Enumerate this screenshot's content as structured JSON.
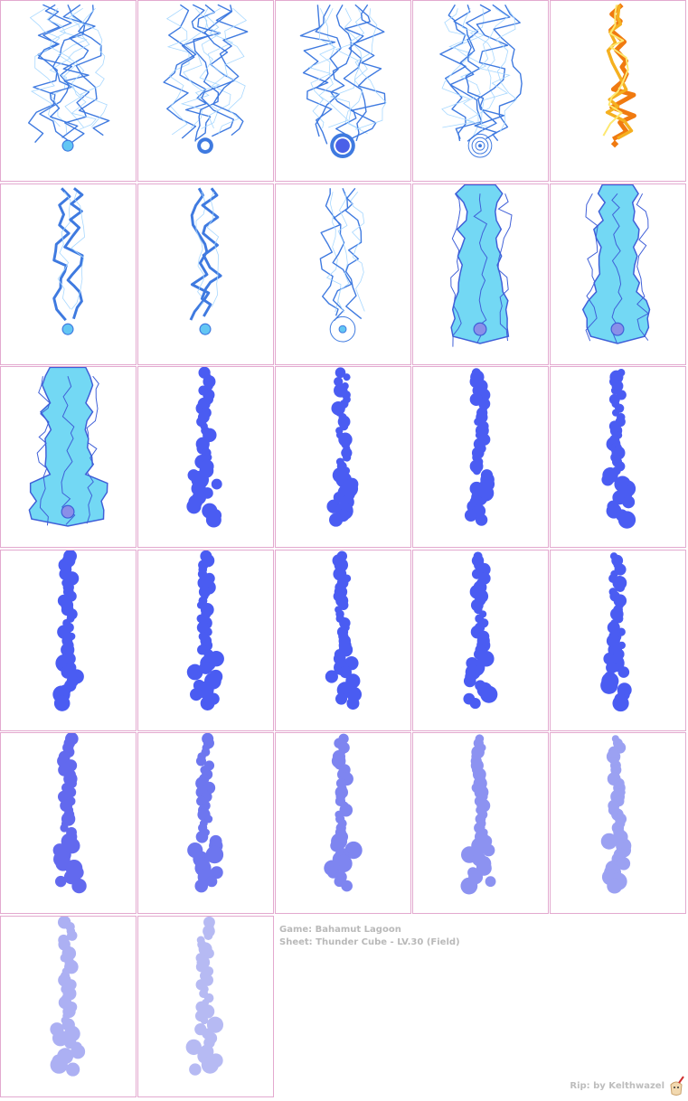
{
  "sheet": {
    "caption_game": "Game: Bahamut Lagoon",
    "caption_sheet": "Sheet: Thunder Cube - LV.30 (Field)",
    "credit": "Rip: by Kelthwazel"
  },
  "frames": [
    {
      "row": 0,
      "col": 0,
      "kind": "bolt",
      "color": "#3f7ae0",
      "orb": "small"
    },
    {
      "row": 0,
      "col": 1,
      "kind": "bolt",
      "color": "#3f7ae0",
      "orb": "ring-small"
    },
    {
      "row": 0,
      "col": 2,
      "kind": "bolt",
      "color": "#3f7ae0",
      "orb": "ring-large"
    },
    {
      "row": 0,
      "col": 3,
      "kind": "bolt",
      "color": "#3f7ae0",
      "orb": "target"
    },
    {
      "row": 0,
      "col": 4,
      "kind": "fire",
      "color": "#f07a10",
      "orb": "diamond"
    },
    {
      "row": 1,
      "col": 0,
      "kind": "bolt-thick",
      "color": "#3f7ae0",
      "orb": "small"
    },
    {
      "row": 1,
      "col": 1,
      "kind": "bolt-thick",
      "color": "#3f7ae0",
      "orb": "small"
    },
    {
      "row": 1,
      "col": 2,
      "kind": "bolt-thin",
      "color": "#3f7ae0",
      "orb": "circle-outline"
    },
    {
      "row": 1,
      "col": 3,
      "kind": "beam",
      "color": "#73d8f4",
      "orb": "core"
    },
    {
      "row": 1,
      "col": 4,
      "kind": "beam",
      "color": "#73d8f4",
      "orb": "core"
    },
    {
      "row": 2,
      "col": 0,
      "kind": "beam-wide",
      "color": "#73d8f4",
      "orb": "core"
    },
    {
      "row": 2,
      "col": 1,
      "kind": "smoke",
      "color": "#4a5cf2",
      "opacity": 1
    },
    {
      "row": 2,
      "col": 2,
      "kind": "smoke",
      "color": "#4a5cf2",
      "opacity": 1
    },
    {
      "row": 2,
      "col": 3,
      "kind": "smoke",
      "color": "#4a5cf2",
      "opacity": 1
    },
    {
      "row": 2,
      "col": 4,
      "kind": "smoke",
      "color": "#4a5cf2",
      "opacity": 1
    },
    {
      "row": 3,
      "col": 0,
      "kind": "smoke",
      "color": "#4a5cf2",
      "opacity": 1
    },
    {
      "row": 3,
      "col": 1,
      "kind": "smoke",
      "color": "#4a5cf2",
      "opacity": 1
    },
    {
      "row": 3,
      "col": 2,
      "kind": "smoke",
      "color": "#4a5cf2",
      "opacity": 1
    },
    {
      "row": 3,
      "col": 3,
      "kind": "smoke",
      "color": "#4a5cf2",
      "opacity": 1
    },
    {
      "row": 3,
      "col": 4,
      "kind": "smoke",
      "color": "#4a5cf2",
      "opacity": 1
    },
    {
      "row": 4,
      "col": 0,
      "kind": "smoke",
      "color": "#5a62ee",
      "opacity": 0.95
    },
    {
      "row": 4,
      "col": 1,
      "kind": "smoke",
      "color": "#5e68ee",
      "opacity": 0.9
    },
    {
      "row": 4,
      "col": 2,
      "kind": "smoke",
      "color": "#6870ee",
      "opacity": 0.85
    },
    {
      "row": 4,
      "col": 3,
      "kind": "smoke",
      "color": "#7078ee",
      "opacity": 0.8
    },
    {
      "row": 4,
      "col": 4,
      "kind": "smoke",
      "color": "#7a82ee",
      "opacity": 0.75
    },
    {
      "row": 5,
      "col": 0,
      "kind": "smoke",
      "color": "#8a90ee",
      "opacity": 0.7
    },
    {
      "row": 5,
      "col": 1,
      "kind": "smoke",
      "color": "#9096ee",
      "opacity": 0.65
    }
  ]
}
